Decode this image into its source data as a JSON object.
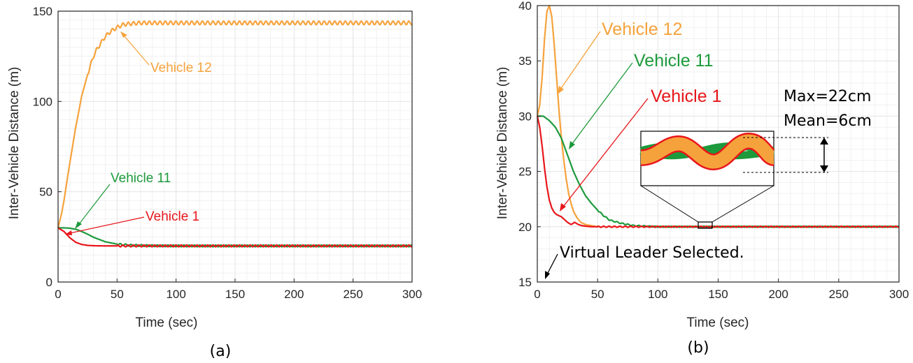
{
  "colors": {
    "vehicle_1": "#e8161b",
    "vehicle_11": "#1d9a3c",
    "vehicle_12": "#f6a23c",
    "grid": "#e6e6e6",
    "axis": "#262626"
  },
  "chart_data": [
    {
      "type": "line",
      "caption": "(a)",
      "xlabel": "Time (sec)",
      "ylabel": "Inter-Vehicle Distance (m)",
      "xlim": [
        0,
        300
      ],
      "ylim": [
        0,
        150
      ],
      "xticks": [
        "0",
        "50",
        "100",
        "150",
        "200",
        "250",
        "300"
      ],
      "yticks": [
        "0",
        "50",
        "100",
        "150"
      ],
      "grid": true,
      "series": [
        {
          "name": "Vehicle 1",
          "x": [
            0,
            5,
            10,
            15,
            20,
            25,
            30,
            40,
            50,
            60,
            80,
            100,
            150,
            200,
            250,
            300
          ],
          "values": [
            30,
            28,
            24.5,
            22,
            20.8,
            20.3,
            20.1,
            20,
            20,
            20,
            20,
            20,
            20,
            20,
            20,
            20
          ]
        },
        {
          "name": "Vehicle 11",
          "x": [
            0,
            5,
            10,
            15,
            20,
            25,
            30,
            40,
            50,
            60,
            80,
            100,
            150,
            200,
            250,
            300
          ],
          "values": [
            30,
            30,
            29.8,
            29.2,
            28,
            26.5,
            24.8,
            22.3,
            21,
            20.4,
            20.1,
            20,
            20,
            20,
            20,
            20
          ]
        },
        {
          "name": "Vehicle 12",
          "x": [
            0,
            3,
            5,
            8,
            10,
            13,
            15,
            18,
            20,
            23,
            25,
            28,
            30,
            33,
            35,
            38,
            40,
            45,
            50,
            55,
            60,
            70,
            80,
            100,
            150,
            200,
            250,
            300
          ],
          "values": [
            30,
            38,
            45,
            58,
            66,
            78,
            86,
            96,
            103,
            110,
            115,
            121,
            125,
            129,
            131,
            134,
            136,
            139,
            141,
            142.5,
            143,
            143.5,
            143.5,
            143.5,
            143.5,
            143.5,
            143.5,
            143.5
          ]
        }
      ],
      "annotations": [
        {
          "series": "Vehicle 12",
          "text": "Vehicle 12"
        },
        {
          "series": "Vehicle 11",
          "text": "Vehicle 11"
        },
        {
          "series": "Vehicle 1",
          "text": "Vehicle 1"
        }
      ]
    },
    {
      "type": "line",
      "caption": "(b)",
      "xlabel": "Time (sec)",
      "ylabel": "Inter-Vehicle Distance (m)",
      "xlim": [
        0,
        300
      ],
      "ylim": [
        15,
        40
      ],
      "xticks": [
        "0",
        "50",
        "100",
        "150",
        "200",
        "250",
        "300"
      ],
      "yticks": [
        "15",
        "20",
        "25",
        "30",
        "35",
        "40"
      ],
      "grid": true,
      "series": [
        {
          "name": "Vehicle 1",
          "x": [
            0,
            2,
            4,
            6,
            8,
            10,
            12,
            14,
            16,
            18,
            20,
            22,
            25,
            28,
            31,
            34,
            37,
            40,
            45,
            50,
            60,
            80,
            100,
            150,
            200,
            250,
            300
          ],
          "values": [
            30,
            29,
            27.3,
            25.3,
            23.6,
            22.4,
            21.7,
            21.3,
            21.1,
            21,
            20.9,
            20.7,
            20.4,
            20.2,
            20.4,
            20.2,
            20.1,
            20.05,
            20,
            20,
            20,
            20,
            20,
            20,
            20,
            20,
            20
          ]
        },
        {
          "name": "Vehicle 11",
          "x": [
            0,
            5,
            10,
            15,
            20,
            25,
            30,
            35,
            40,
            45,
            50,
            55,
            60,
            70,
            80,
            90,
            100,
            150,
            200,
            250,
            300
          ],
          "values": [
            30,
            30,
            29.6,
            29,
            28,
            26.5,
            25,
            23.8,
            22.8,
            22.1,
            21.5,
            21,
            20.6,
            20.3,
            20.1,
            20.05,
            20,
            20,
            20,
            20,
            20
          ]
        },
        {
          "name": "Vehicle 12",
          "x": [
            0,
            2,
            4,
            6,
            8,
            10,
            12,
            14,
            16,
            18,
            20,
            22,
            24,
            26,
            28,
            30,
            33,
            36,
            40,
            45,
            50,
            60,
            80,
            100,
            150,
            200,
            250,
            300
          ],
          "values": [
            30,
            31,
            33.5,
            37,
            39.5,
            40,
            39,
            36.5,
            33.5,
            30.5,
            28,
            26,
            24.3,
            23,
            22.1,
            21.4,
            20.8,
            20.4,
            20.2,
            20.1,
            20,
            20,
            20,
            20,
            20,
            20,
            20,
            20
          ]
        }
      ],
      "annotations": [
        {
          "series": "Vehicle 12",
          "text": "Vehicle 12"
        },
        {
          "series": "Vehicle 11",
          "text": "Vehicle 11"
        },
        {
          "series": "Vehicle 1",
          "text": "Vehicle 1"
        },
        {
          "text": "Virtual Leader Selected."
        },
        {
          "text": "Max=22cm"
        },
        {
          "text": "Mean=6cm"
        }
      ]
    }
  ]
}
